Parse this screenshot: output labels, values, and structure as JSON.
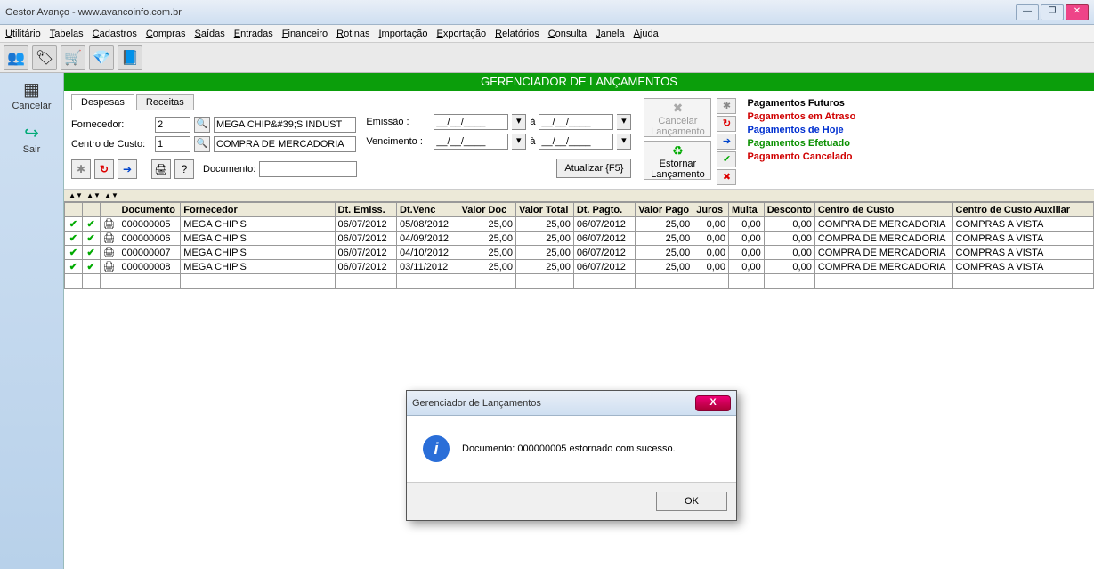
{
  "window": {
    "title": "Gestor Avanço - www.avancoinfo.com.br"
  },
  "menus": [
    "Utilitário",
    "Tabelas",
    "Cadastros",
    "Compras",
    "Saídas",
    "Entradas",
    "Financeiro",
    "Rotinas",
    "Importação",
    "Exportação",
    "Relatórios",
    "Consulta",
    "Janela",
    "Ajuda"
  ],
  "sidebar": {
    "cancel": "Cancelar",
    "exit": "Sair"
  },
  "header": {
    "title": "GERENCIADOR DE LANÇAMENTOS"
  },
  "tabs": {
    "despesas": "Despesas",
    "receitas": "Receitas"
  },
  "form": {
    "fornecedor_label": "Fornecedor:",
    "fornecedor_code": "2",
    "fornecedor_name": "MEGA CHIP&#39;S INDUST",
    "centro_label": "Centro de Custo:",
    "centro_code": "1",
    "centro_name": "COMPRA DE MERCADORIA",
    "emissao_label": "Emissão :",
    "venc_label": "Vencimento :",
    "date_placeholder": "__/__/____",
    "a": "à",
    "documento_label": "Documento:",
    "documento_value": "",
    "atualizar": "Atualizar {F5}"
  },
  "actions": {
    "cancelar": "Cancelar Lançamento",
    "estornar": "Estornar Lançamento"
  },
  "legend": {
    "futuros": {
      "text": "Pagamentos Futuros",
      "color": "#000000"
    },
    "atraso": {
      "text": "Pagamentos em Atraso",
      "color": "#d00000"
    },
    "hoje": {
      "text": "Pagamentos de Hoje",
      "color": "#0030d0"
    },
    "efetuado": {
      "text": "Pagamentos Efetuado",
      "color": "#0a9000"
    },
    "cancelado": {
      "text": "Pagamento Cancelado",
      "color": "#d00000"
    }
  },
  "columns": [
    "",
    "",
    "",
    "Documento",
    "Fornecedor",
    "Dt. Emiss.",
    "Dt.Venc",
    "Valor Doc",
    "Valor Total",
    "Dt. Pagto.",
    "Valor Pago",
    "Juros",
    "Multa",
    "Desconto",
    "Centro de Custo",
    "Centro de Custo Auxiliar"
  ],
  "rows": [
    {
      "doc": "000000005",
      "forn": "MEGA CHIP&#39;S",
      "emiss": "06/07/2012",
      "venc": "05/08/2012",
      "vdoc": "25,00",
      "vtot": "25,00",
      "pagto": "06/07/2012",
      "vpago": "25,00",
      "juros": "0,00",
      "multa": "0,00",
      "desc": "0,00",
      "cc": "COMPRA DE MERCADORIA",
      "ccaux": "COMPRAS A VISTA"
    },
    {
      "doc": "000000006",
      "forn": "MEGA CHIP&#39;S",
      "emiss": "06/07/2012",
      "venc": "04/09/2012",
      "vdoc": "25,00",
      "vtot": "25,00",
      "pagto": "06/07/2012",
      "vpago": "25,00",
      "juros": "0,00",
      "multa": "0,00",
      "desc": "0,00",
      "cc": "COMPRA DE MERCADORIA",
      "ccaux": "COMPRAS A VISTA"
    },
    {
      "doc": "000000007",
      "forn": "MEGA CHIP&#39;S",
      "emiss": "06/07/2012",
      "venc": "04/10/2012",
      "vdoc": "25,00",
      "vtot": "25,00",
      "pagto": "06/07/2012",
      "vpago": "25,00",
      "juros": "0,00",
      "multa": "0,00",
      "desc": "0,00",
      "cc": "COMPRA DE MERCADORIA",
      "ccaux": "COMPRAS A VISTA"
    },
    {
      "doc": "000000008",
      "forn": "MEGA CHIP&#39;S",
      "emiss": "06/07/2012",
      "venc": "03/11/2012",
      "vdoc": "25,00",
      "vtot": "25,00",
      "pagto": "06/07/2012",
      "vpago": "25,00",
      "juros": "0,00",
      "multa": "0,00",
      "desc": "0,00",
      "cc": "COMPRA DE MERCADORIA",
      "ccaux": "COMPRAS A VISTA"
    }
  ],
  "dialog": {
    "title": "Gerenciador de Lançamentos",
    "message": "Documento: 000000005 estornado com sucesso.",
    "ok": "OK"
  }
}
